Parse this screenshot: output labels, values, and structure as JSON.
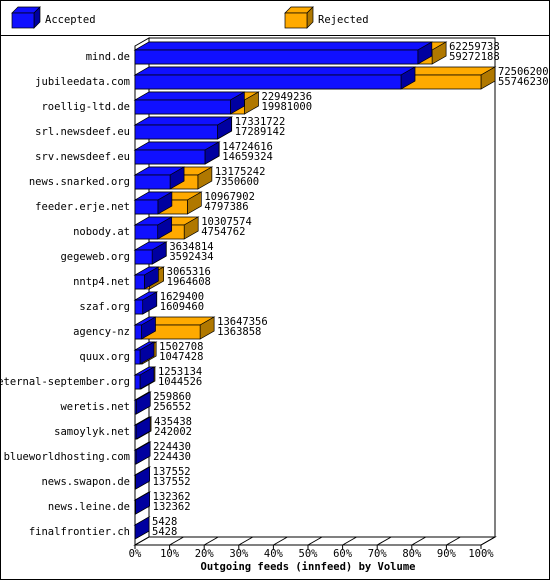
{
  "chart_data": {
    "type": "bar",
    "orientation": "horizontal",
    "overlap": true,
    "x_label": "Outgoing feeds (innfeed) by Volume",
    "categories": [
      "mind.de",
      "jubileedata.com",
      "roellig-ltd.de",
      "srl.newsdeef.eu",
      "srv.newsdeef.eu",
      "news.snarked.org",
      "feeder.erje.net",
      "nobody.at",
      "gegeweb.org",
      "nntp4.net",
      "szaf.org",
      "agency-nz",
      "quux.org",
      "eternal-september.org",
      "weretis.net",
      "samoylyk.net",
      "blueworldhosting.com",
      "news.swapon.de",
      "news.leine.de",
      "finalfrontier.ch"
    ],
    "series": [
      {
        "name": "Accepted",
        "color": "#1010ff",
        "side_color": "#0000a0",
        "values": [
          59272188,
          55746230,
          19981000,
          17289142,
          14659324,
          7350600,
          4797386,
          4754762,
          3592434,
          1964608,
          1609460,
          1363858,
          1047428,
          1044526,
          256552,
          242002,
          224430,
          137552,
          132362,
          5428
        ]
      },
      {
        "name": "Rejected",
        "color": "#ffaa00",
        "side_color": "#b07800",
        "values": [
          62259738,
          72506200,
          22949236,
          17331722,
          14724616,
          13175242,
          10967902,
          10307574,
          3634814,
          3065316,
          1629400,
          13647356,
          1502708,
          1253134,
          259860,
          435438,
          224430,
          137552,
          132362,
          5428
        ]
      }
    ],
    "xlim": [
      0,
      72506200
    ],
    "xticks": [
      {
        "value": 0,
        "label": "0%"
      },
      {
        "value": 7250620,
        "label": "10%"
      },
      {
        "value": 14501240,
        "label": "20%"
      },
      {
        "value": 21751860,
        "label": "30%"
      },
      {
        "value": 29002480,
        "label": "40%"
      },
      {
        "value": 36253100,
        "label": "50%"
      },
      {
        "value": 43503720,
        "label": "60%"
      },
      {
        "value": 50754340,
        "label": "70%"
      },
      {
        "value": 58004960,
        "label": "80%"
      },
      {
        "value": 65255580,
        "label": "90%"
      },
      {
        "value": 72506200,
        "label": "100%"
      }
    ]
  }
}
